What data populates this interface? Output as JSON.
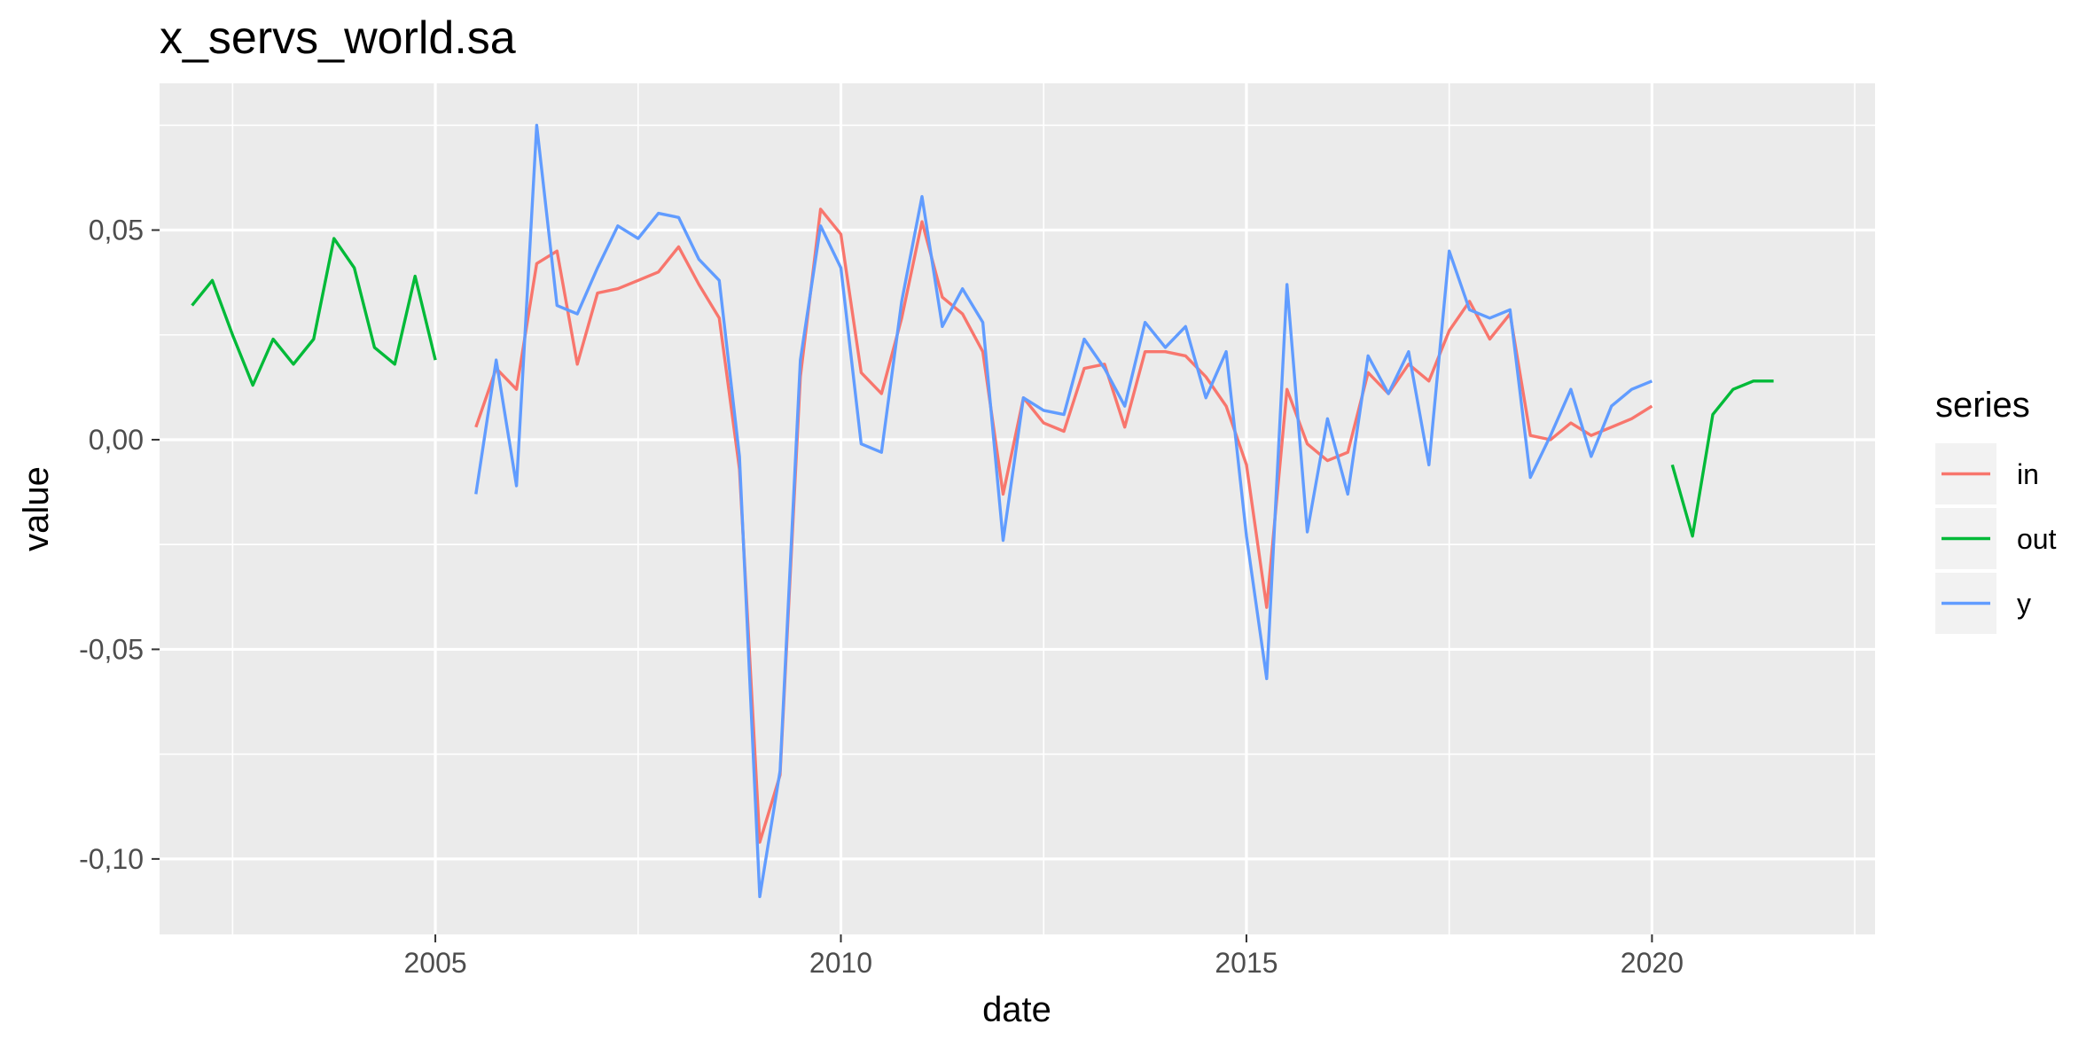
{
  "chart_data": {
    "type": "line",
    "title": "x_servs_world.sa",
    "xlabel": "date",
    "ylabel": "value",
    "x_ticks": [
      2005,
      2010,
      2015,
      2020
    ],
    "y_ticks": [
      {
        "value": 0.05,
        "label": "0,05"
      },
      {
        "value": 0.0,
        "label": "0,00"
      },
      {
        "value": -0.05,
        "label": "-0,05"
      },
      {
        "value": -0.1,
        "label": "-0,10"
      }
    ],
    "xlim": [
      2001.6,
      2022.75
    ],
    "ylim": [
      -0.118,
      0.085
    ],
    "grid": true,
    "legend": {
      "title": "series",
      "position": "right"
    },
    "series": [
      {
        "name": "in",
        "color": "#F8766D",
        "x": [
          2005.5,
          2005.75,
          2006.0,
          2006.25,
          2006.5,
          2006.75,
          2007.0,
          2007.25,
          2007.5,
          2007.75,
          2008.0,
          2008.25,
          2008.5,
          2008.75,
          2009.0,
          2009.25,
          2009.5,
          2009.75,
          2010.0,
          2010.25,
          2010.5,
          2010.75,
          2011.0,
          2011.25,
          2011.5,
          2011.75,
          2012.0,
          2012.25,
          2012.5,
          2012.75,
          2013.0,
          2013.25,
          2013.5,
          2013.75,
          2014.0,
          2014.25,
          2014.5,
          2014.75,
          2015.0,
          2015.25,
          2015.5,
          2015.75,
          2016.0,
          2016.25,
          2016.5,
          2016.75,
          2017.0,
          2017.25,
          2017.5,
          2017.75,
          2018.0,
          2018.25,
          2018.5,
          2018.75,
          2019.0,
          2019.25,
          2019.5,
          2019.75,
          2020.0
        ],
        "y": [
          0.003,
          0.017,
          0.012,
          0.042,
          0.045,
          0.018,
          0.035,
          0.036,
          0.038,
          0.04,
          0.046,
          0.037,
          0.029,
          -0.007,
          -0.096,
          -0.08,
          0.015,
          0.055,
          0.049,
          0.016,
          0.011,
          0.029,
          0.052,
          0.034,
          0.03,
          0.021,
          -0.013,
          0.01,
          0.004,
          0.002,
          0.017,
          0.018,
          0.003,
          0.021,
          0.021,
          0.02,
          0.015,
          0.008,
          -0.006,
          -0.04,
          0.012,
          -0.001,
          -0.005,
          -0.003,
          0.016,
          0.011,
          0.018,
          0.014,
          0.026,
          0.033,
          0.024,
          0.03,
          0.001,
          0.0,
          0.004,
          0.001,
          0.003,
          0.005,
          0.008
        ]
      },
      {
        "name": "out",
        "color": "#00BA38",
        "x": [
          2002.0,
          2002.25,
          2002.5,
          2002.75,
          2003.0,
          2003.25,
          2003.5,
          2003.75,
          2004.0,
          2004.25,
          2004.5,
          2004.75,
          2005.0,
          2005.25,
          2020.25,
          2020.5,
          2020.75,
          2021.0,
          2021.25,
          2021.5
        ],
        "y": [
          0.032,
          0.038,
          0.025,
          0.013,
          0.024,
          0.018,
          0.024,
          0.048,
          0.041,
          0.022,
          0.018,
          0.039,
          0.019,
          null,
          -0.006,
          -0.023,
          0.006,
          0.012,
          0.014,
          0.014
        ]
      },
      {
        "name": "y",
        "color": "#619CFF",
        "x": [
          2005.5,
          2005.75,
          2006.0,
          2006.25,
          2006.5,
          2006.75,
          2007.0,
          2007.25,
          2007.5,
          2007.75,
          2008.0,
          2008.25,
          2008.5,
          2008.75,
          2009.0,
          2009.25,
          2009.5,
          2009.75,
          2010.0,
          2010.25,
          2010.5,
          2010.75,
          2011.0,
          2011.25,
          2011.5,
          2011.75,
          2012.0,
          2012.25,
          2012.5,
          2012.75,
          2013.0,
          2013.25,
          2013.5,
          2013.75,
          2014.0,
          2014.25,
          2014.5,
          2014.75,
          2015.0,
          2015.25,
          2015.5,
          2015.75,
          2016.0,
          2016.25,
          2016.5,
          2016.75,
          2017.0,
          2017.25,
          2017.5,
          2017.75,
          2018.0,
          2018.25,
          2018.5,
          2018.75,
          2019.0,
          2019.25,
          2019.5,
          2019.75,
          2020.0
        ],
        "y": [
          -0.013,
          0.019,
          -0.011,
          0.075,
          0.032,
          0.03,
          0.041,
          0.051,
          0.048,
          0.054,
          0.053,
          0.043,
          0.038,
          -0.004,
          -0.109,
          -0.079,
          0.019,
          0.051,
          0.041,
          -0.001,
          -0.003,
          0.033,
          0.058,
          0.027,
          0.036,
          0.028,
          -0.024,
          0.01,
          0.007,
          0.006,
          0.024,
          0.017,
          0.008,
          0.028,
          0.022,
          0.027,
          0.01,
          0.021,
          -0.023,
          -0.057,
          0.037,
          -0.022,
          0.005,
          -0.013,
          0.02,
          0.011,
          0.021,
          -0.006,
          0.045,
          0.031,
          0.029,
          0.031,
          -0.009,
          0.001,
          0.012,
          -0.004,
          0.008,
          0.012,
          0.014
        ]
      }
    ]
  }
}
